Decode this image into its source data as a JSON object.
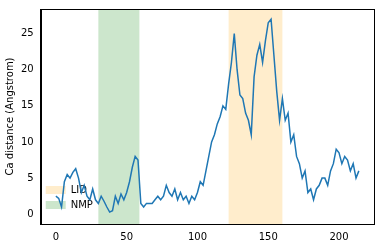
{
  "chart_data": {
    "type": "line",
    "y_label": "Ca distance (Angstrom)",
    "x": [
      0,
      2,
      4,
      6,
      8,
      10,
      12,
      14,
      16,
      18,
      20,
      22,
      24,
      26,
      28,
      30,
      32,
      34,
      36,
      38,
      40,
      42,
      44,
      46,
      48,
      50,
      52,
      54,
      56,
      58,
      60,
      62,
      64,
      66,
      68,
      70,
      72,
      74,
      76,
      78,
      80,
      82,
      84,
      86,
      88,
      90,
      92,
      94,
      96,
      98,
      100,
      102,
      104,
      106,
      108,
      110,
      112,
      114,
      116,
      118,
      120,
      122,
      124,
      126,
      128,
      130,
      132,
      134,
      136,
      138,
      140,
      142,
      144,
      146,
      148,
      150,
      152,
      154,
      156,
      158,
      160,
      162,
      164,
      166,
      168,
      170,
      172,
      174,
      176,
      178,
      180,
      182,
      184,
      186,
      188,
      190,
      192,
      194,
      196,
      198,
      200,
      202,
      204,
      206,
      208,
      210,
      212,
      214
    ],
    "series": [
      {
        "color": "#1f77b4",
        "values": [
          2.5,
          2.2,
          1.0,
          4.5,
          5.5,
          5.0,
          5.8,
          6.3,
          5.0,
          3.0,
          4.0,
          2.5,
          2.0,
          3.5,
          2.0,
          1.5,
          2.5,
          1.8,
          1.0,
          0.3,
          0.5,
          2.5,
          1.5,
          2.8,
          2.0,
          3.0,
          4.5,
          6.5,
          8.0,
          7.5,
          1.5,
          1.0,
          1.5,
          1.5,
          1.5,
          2.0,
          2.5,
          2.0,
          2.5,
          4.0,
          3.0,
          2.5,
          3.5,
          2.0,
          3.0,
          2.0,
          2.5,
          1.5,
          2.5,
          2.0,
          3.0,
          4.5,
          4.0,
          6.0,
          8.0,
          10.0,
          11.0,
          12.5,
          13.5,
          15.0,
          14.5,
          18.0,
          21.0,
          25.0,
          20.0,
          16.5,
          16.0,
          14.0,
          13.0,
          11.0,
          19.0,
          22.0,
          23.5,
          21.0,
          24.0,
          26.5,
          27.0,
          22.0,
          17.0,
          13.0,
          16.0,
          13.0,
          14.0,
          10.0,
          11.0,
          8.0,
          7.0,
          5.0,
          6.0,
          3.0,
          3.5,
          2.0,
          3.5,
          4.0,
          5.0,
          5.0,
          4.0,
          6.0,
          7.0,
          9.0,
          8.5,
          7.0,
          8.0,
          7.5,
          6.0,
          7.0,
          5.0,
          6.0
        ]
      }
    ],
    "spans": [
      {
        "name": "LID",
        "x0": 122,
        "x1": 160,
        "color": "#ffa500"
      },
      {
        "name": "NMP",
        "x0": 30,
        "x1": 59,
        "color": "#008000"
      }
    ],
    "xlim": [
      -10.7,
      224.7
    ],
    "ylim": [
      -1.35,
      28.4
    ],
    "xticks": [
      0,
      50,
      100,
      150,
      200
    ],
    "yticks": [
      0,
      5,
      10,
      15,
      20,
      25
    ],
    "grid": false,
    "legend": "upper right"
  }
}
